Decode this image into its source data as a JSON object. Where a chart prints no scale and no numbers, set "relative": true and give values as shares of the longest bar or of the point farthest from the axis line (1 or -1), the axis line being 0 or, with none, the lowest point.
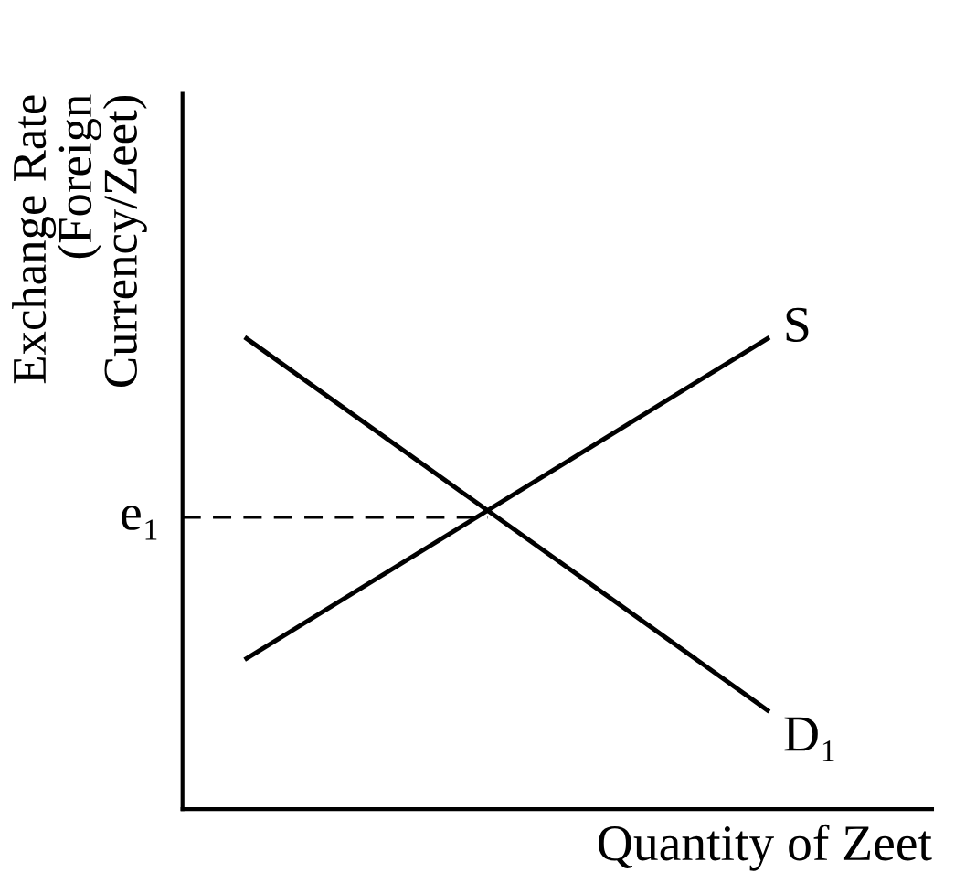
{
  "chart_data": {
    "type": "line",
    "relative": true,
    "xlabel": "Quantity of Zeet",
    "ylabel": "Exchange Rate\n(Foreign\nCurrency/Zeet)",
    "categories": [
      null,
      null
    ],
    "series": [
      {
        "name": "S",
        "color": "#000000",
        "values": [
          0.32,
          1.0
        ]
      },
      {
        "name": "D₁",
        "color": "#000000",
        "values": [
          1.0,
          0.21
        ]
      }
    ],
    "ref_lines": [
      {
        "axis": "y",
        "value": 0.62,
        "label": "e₁",
        "line_style": "dashed",
        "color": "#000000"
      }
    ]
  }
}
